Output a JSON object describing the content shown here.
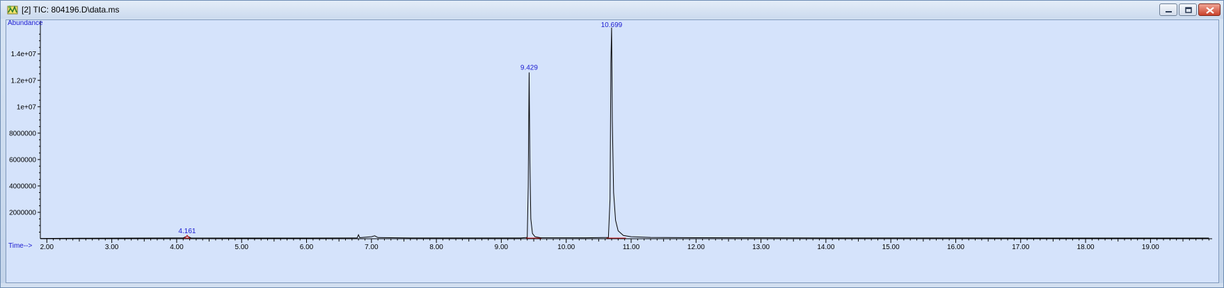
{
  "window": {
    "title": "[2] TIC: 804196.D\\data.ms",
    "controls": [
      "minimize",
      "restore",
      "close"
    ],
    "icon": "chromatogram-app-icon"
  },
  "chart_data": {
    "type": "line",
    "xlabel": "Time-->",
    "ylabel": "Abundance",
    "xlim": [
      1.9,
      19.95
    ],
    "ylim": [
      0,
      16300000
    ],
    "x_ticks": [
      "2.00",
      "3.00",
      "4.00",
      "5.00",
      "6.00",
      "7.00",
      "8.00",
      "9.00",
      "10.00",
      "11.00",
      "12.00",
      "13.00",
      "14.00",
      "15.00",
      "16.00",
      "17.00",
      "18.00",
      "19.00"
    ],
    "y_ticks": [
      {
        "value": 2000000,
        "label": "2000000"
      },
      {
        "value": 4000000,
        "label": "4000000"
      },
      {
        "value": 6000000,
        "label": "6000000"
      },
      {
        "value": 8000000,
        "label": "8000000"
      },
      {
        "value": 10000000,
        "label": "1e+07"
      },
      {
        "value": 12000000,
        "label": "1.2e+07"
      },
      {
        "value": 14000000,
        "label": "1.4e+07"
      }
    ],
    "grid": false,
    "series": [
      {
        "color": "#000000",
        "points": [
          [
            1.9,
            20000
          ],
          [
            2.5,
            40000
          ],
          [
            3.5,
            50000
          ],
          [
            4.1,
            60000
          ],
          [
            4.161,
            200000
          ],
          [
            4.22,
            60000
          ],
          [
            5.0,
            50000
          ],
          [
            6.0,
            50000
          ],
          [
            6.78,
            60000
          ],
          [
            6.8,
            300000
          ],
          [
            6.82,
            80000
          ],
          [
            6.9,
            110000
          ],
          [
            7.0,
            150000
          ],
          [
            7.05,
            220000
          ],
          [
            7.1,
            90000
          ],
          [
            7.6,
            60000
          ],
          [
            8.5,
            60000
          ],
          [
            9.3,
            60000
          ],
          [
            9.4,
            100000
          ],
          [
            9.415,
            4000000
          ],
          [
            9.429,
            12600000
          ],
          [
            9.44,
            6000000
          ],
          [
            9.455,
            1500000
          ],
          [
            9.48,
            400000
          ],
          [
            9.52,
            150000
          ],
          [
            9.6,
            80000
          ],
          [
            10.3,
            70000
          ],
          [
            10.65,
            100000
          ],
          [
            10.675,
            3000000
          ],
          [
            10.688,
            13300000
          ],
          [
            10.699,
            16000000
          ],
          [
            10.71,
            9000000
          ],
          [
            10.73,
            3500000
          ],
          [
            10.76,
            1400000
          ],
          [
            10.8,
            600000
          ],
          [
            10.88,
            250000
          ],
          [
            11.0,
            150000
          ],
          [
            11.3,
            100000
          ],
          [
            12.0,
            80000
          ],
          [
            13.0,
            70000
          ],
          [
            14.0,
            60000
          ],
          [
            15.0,
            60000
          ],
          [
            16.0,
            60000
          ],
          [
            17.0,
            50000
          ],
          [
            18.0,
            50000
          ],
          [
            19.0,
            50000
          ],
          [
            19.9,
            50000
          ]
        ]
      }
    ],
    "peak_labels": [
      {
        "x": 4.161,
        "label": "4.161"
      },
      {
        "x": 9.429,
        "label": "9.429"
      },
      {
        "x": 10.699,
        "label": "10.699"
      }
    ],
    "integration_baselines": [
      {
        "x_start": 4.1,
        "x_end": 4.22
      },
      {
        "x_start": 9.38,
        "x_end": 9.62
      },
      {
        "x_start": 10.62,
        "x_end": 10.92
      }
    ],
    "colors": {
      "background": "#d5e3fb",
      "trace": "#000000",
      "peak_label": "#1a1ad0",
      "baseline": "#e0282b"
    }
  }
}
